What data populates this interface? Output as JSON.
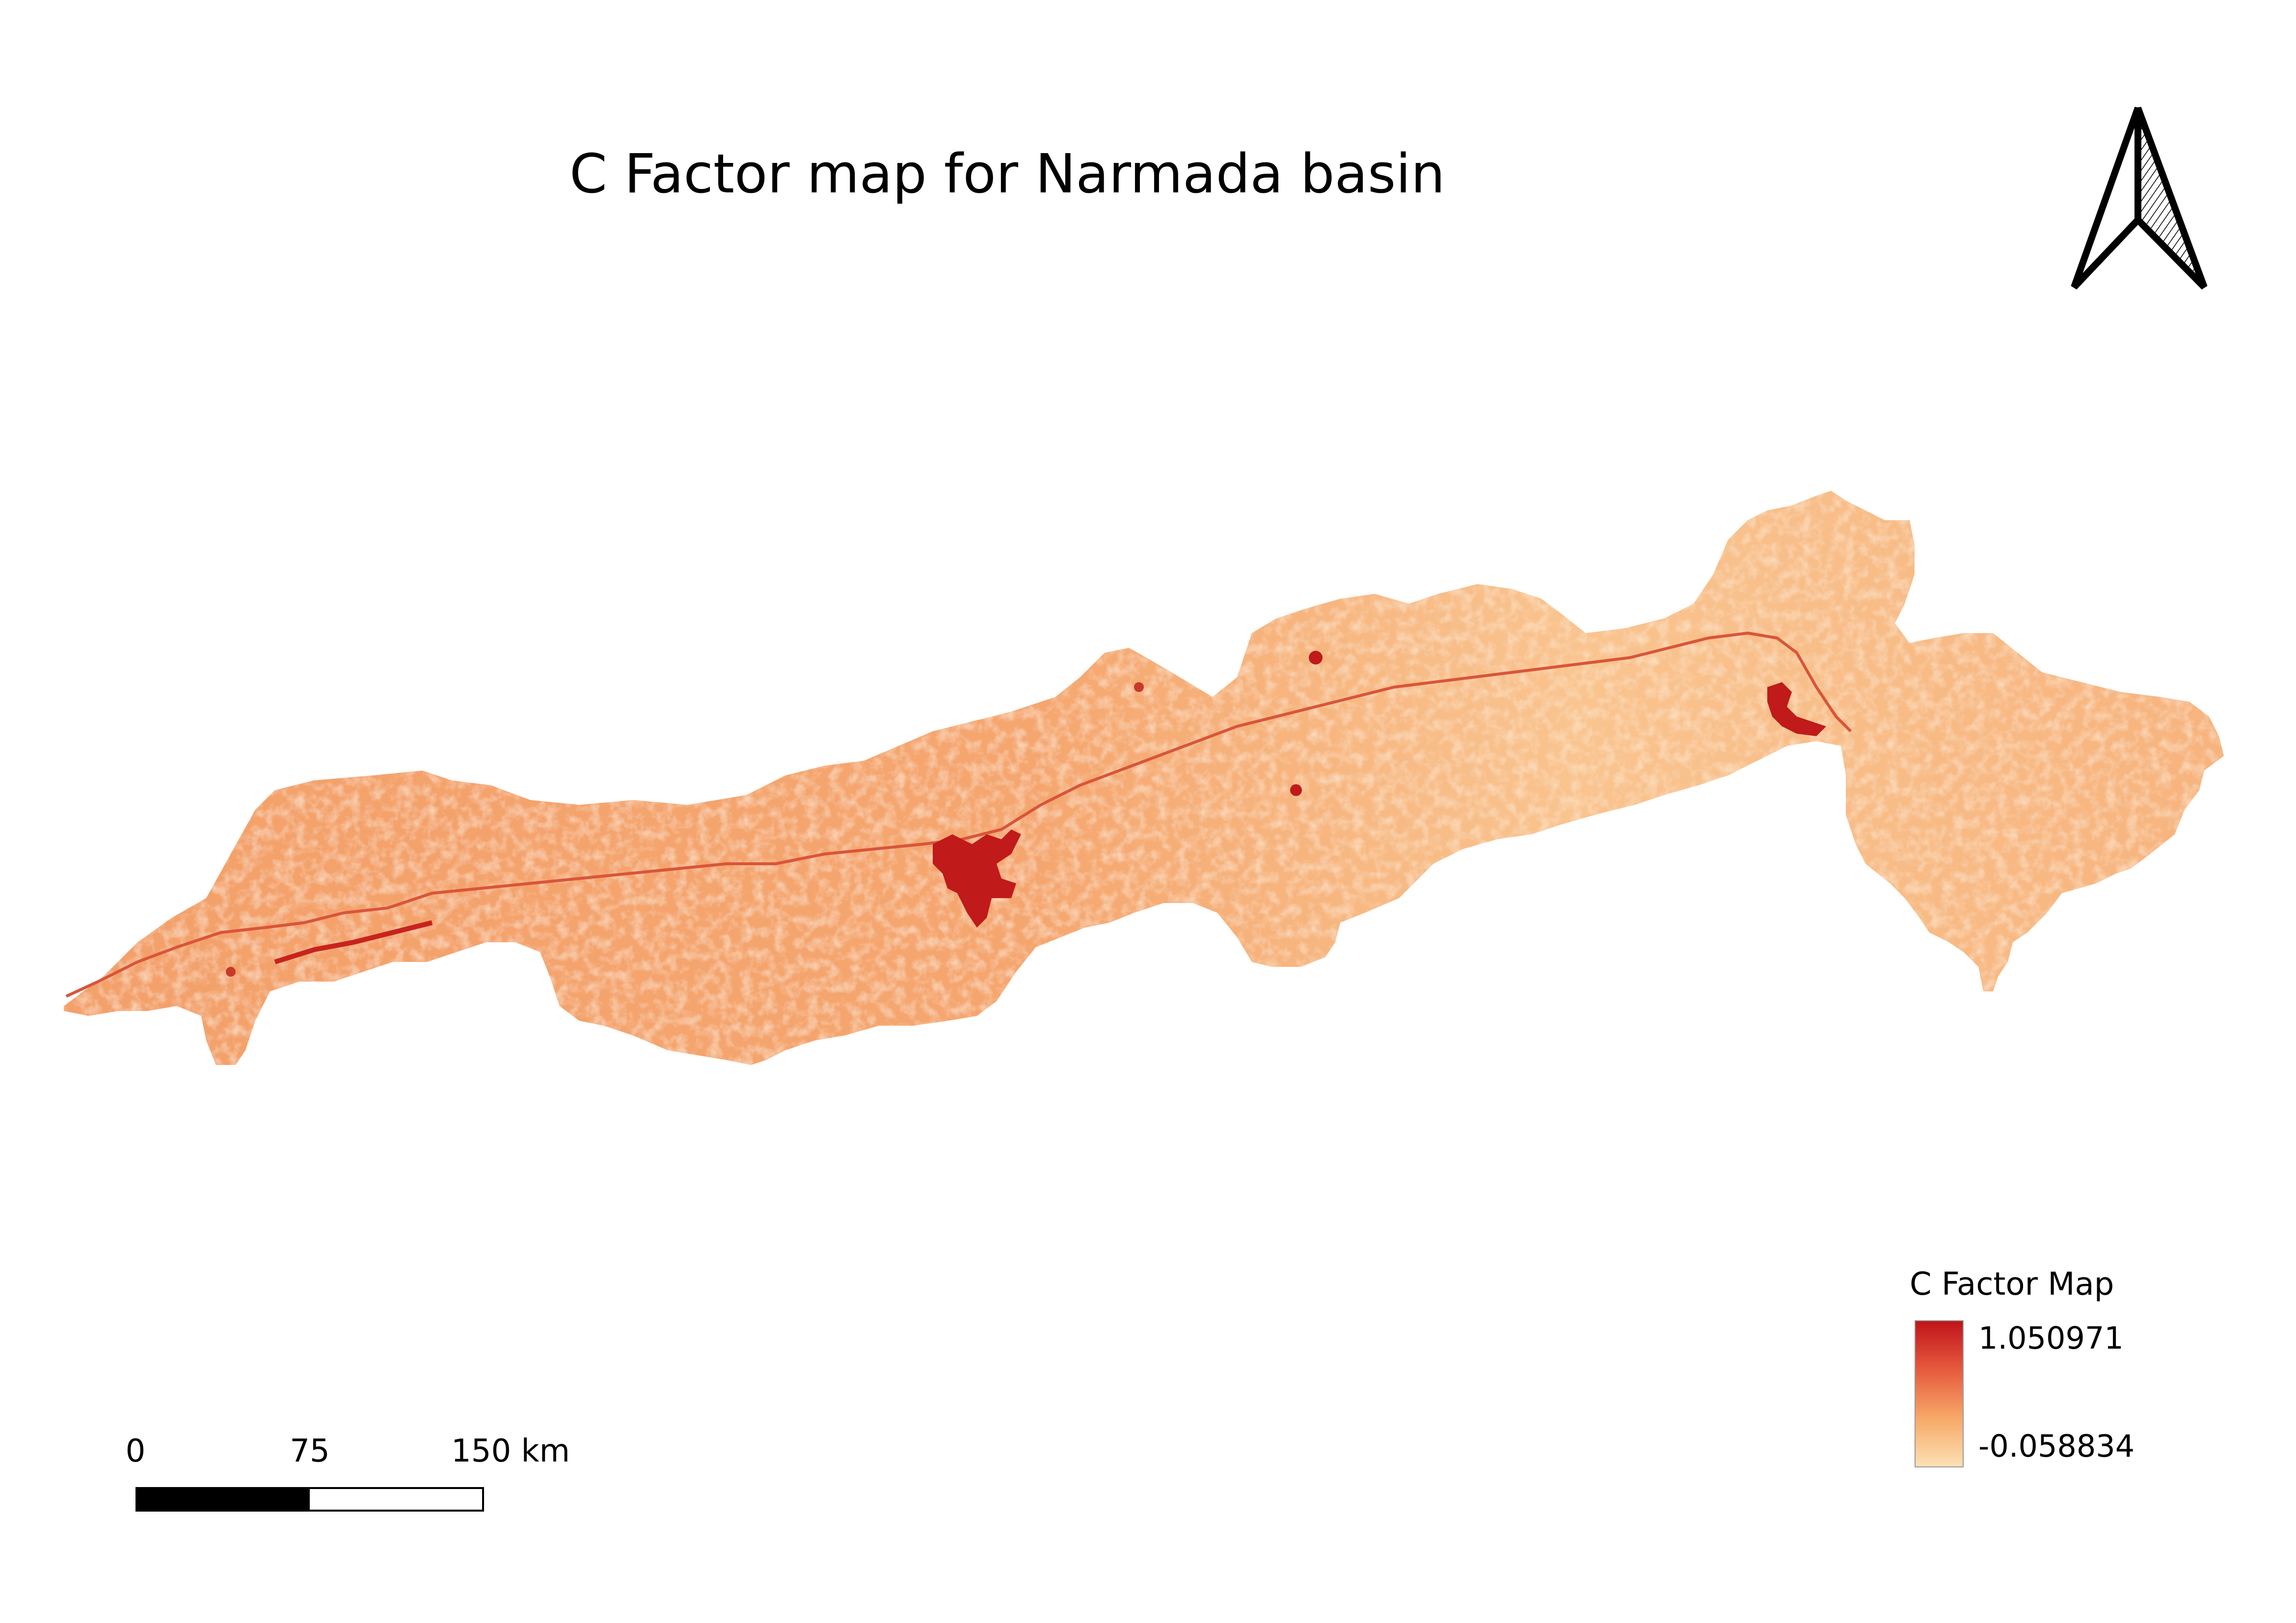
{
  "map": {
    "title": "C Factor map for Narmada basin"
  },
  "legend": {
    "title": "C Factor Map",
    "max_label": "1.050971",
    "min_label": "-0.058834",
    "max_value": 1.050971,
    "min_value": -0.058834,
    "ramp_colors": [
      "#c0141a",
      "#e65a3e",
      "#f7a868",
      "#fde0b4"
    ]
  },
  "scalebar": {
    "labels": [
      "0",
      "75",
      "150 km"
    ]
  },
  "north_arrow": {
    "icon": "north-arrow-icon"
  },
  "colors": {
    "low": "#fde0b4",
    "mid": "#f6aa70",
    "high": "#c0141a",
    "frame": "#000000"
  }
}
